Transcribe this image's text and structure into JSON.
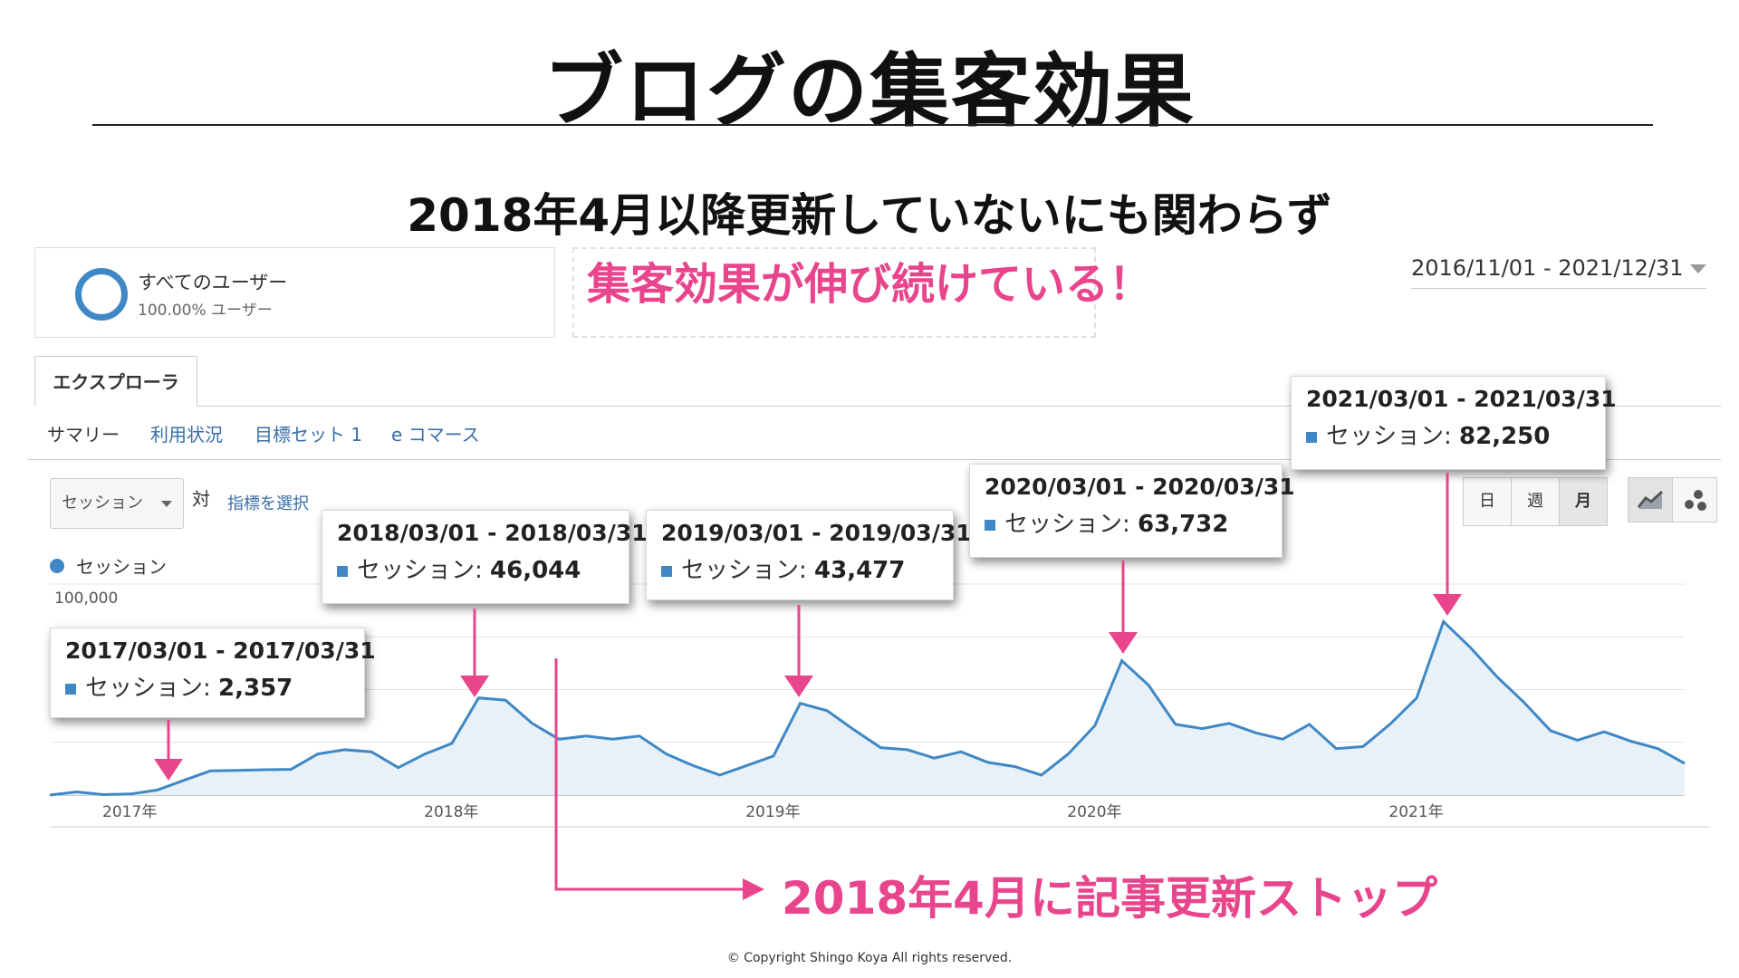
{
  "slide": {
    "title": "ブログの集客効果",
    "subtitle": "2018年4月以降更新していないにも関わらず",
    "highlight": "集客効果が伸び続けている！",
    "stop_annotation": "2018年4月に記事更新ストップ",
    "copyright": "© Copyright Shingo Koya All rights reserved.",
    "accent_color": "#e8458c"
  },
  "segment": {
    "name": "すべてのユーザー",
    "percent": "100.00% ユーザー"
  },
  "date_range": "2016/11/01 - 2021/12/31",
  "tabs": {
    "explorer": "エクスプローラ"
  },
  "subnav": {
    "summary": "サマリー",
    "usage": "利用状況",
    "goal_set": "目標セット 1",
    "ecommerce": "e コマース"
  },
  "controls": {
    "metric": "セッション",
    "vs": "対",
    "choose_metric": "指標を選択",
    "day": "日",
    "week": "週",
    "month": "月",
    "line_chart_icon": "line-chart-icon",
    "motion_chart_icon": "bubble-chart-icon"
  },
  "legend": {
    "series": "セッション",
    "color": "#3f88c5"
  },
  "tooltips": {
    "t2017": {
      "range": "2017/03/01 - 2017/03/31",
      "label": "セッション:",
      "value": "2,357"
    },
    "t2018": {
      "range": "2018/03/01 - 2018/03/31",
      "label": "セッション:",
      "value": "46,044"
    },
    "t2019": {
      "range": "2019/03/01 - 2019/03/31",
      "label": "セッション:",
      "value": "43,477"
    },
    "t2020": {
      "range": "2020/03/01 - 2020/03/31",
      "label": "セッション:",
      "value": "63,732"
    },
    "t2021": {
      "range": "2021/03/01 - 2021/03/31",
      "label": "セッション:",
      "value": "82,250"
    }
  },
  "chart_data": {
    "type": "area",
    "series": [
      {
        "name": "セッション",
        "x": [
          "2016-11",
          "2016-12",
          "2017-01",
          "2017-02",
          "2017-03",
          "2017-04",
          "2017-05",
          "2017-06",
          "2017-07",
          "2017-08",
          "2017-09",
          "2017-10",
          "2017-11",
          "2017-12",
          "2018-01",
          "2018-02",
          "2018-03",
          "2018-04",
          "2018-05",
          "2018-06",
          "2018-07",
          "2018-08",
          "2018-09",
          "2018-10",
          "2018-11",
          "2018-12",
          "2019-01",
          "2019-02",
          "2019-03",
          "2019-04",
          "2019-05",
          "2019-06",
          "2019-07",
          "2019-08",
          "2019-09",
          "2019-10",
          "2019-11",
          "2019-12",
          "2020-01",
          "2020-02",
          "2020-03",
          "2020-04",
          "2020-05",
          "2020-06",
          "2020-07",
          "2020-08",
          "2020-09",
          "2020-10",
          "2020-11",
          "2020-12",
          "2021-01",
          "2021-02",
          "2021-03",
          "2021-04",
          "2021-05",
          "2021-06",
          "2021-07",
          "2021-08",
          "2021-09",
          "2021-10",
          "2021-11",
          "2021-12"
        ],
        "values": [
          0,
          1500,
          200,
          500,
          2357,
          7000,
          11500,
          11700,
          12000,
          12200,
          19500,
          21500,
          20500,
          13000,
          19500,
          24500,
          46044,
          45000,
          34000,
          26500,
          28000,
          26500,
          28000,
          19500,
          14000,
          9500,
          14000,
          18500,
          43477,
          40000,
          31000,
          22500,
          21500,
          17500,
          20500,
          15500,
          13500,
          9500,
          19500,
          33000,
          63732,
          52000,
          33500,
          31500,
          34000,
          29500,
          26500,
          33500,
          22000,
          23000,
          33500,
          46000,
          82250,
          70000,
          56000,
          44000,
          30500,
          26000,
          30000,
          25500,
          22000,
          15000
        ]
      }
    ],
    "ytick_labels": [
      "100,000"
    ],
    "xtick_labels": [
      "2017年",
      "2018年",
      "2019年",
      "2020年",
      "2021年"
    ],
    "ylim": [
      0,
      100000
    ],
    "grid": true,
    "fill_color": "#e8f0f8",
    "line_color": "#3f88c5"
  }
}
